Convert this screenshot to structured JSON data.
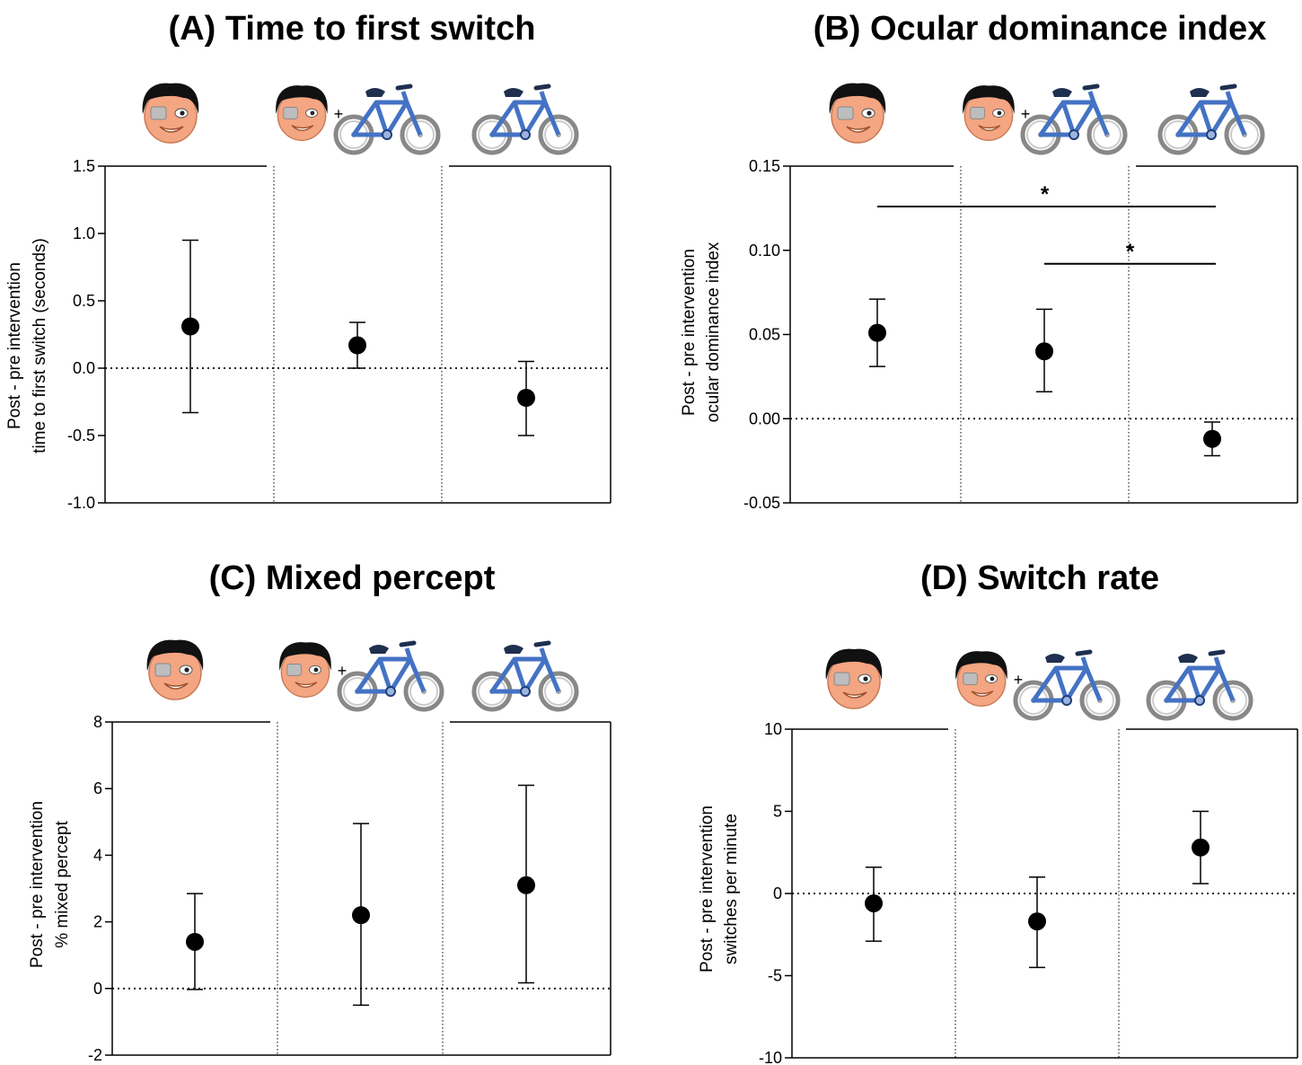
{
  "figure": {
    "panels": [
      {
        "id": "A",
        "title": "(A) Time to first switch",
        "ylabel": [
          "Post - pre intervention",
          "time to first switch (seconds)"
        ]
      },
      {
        "id": "B",
        "title": "(B) Ocular dominance index",
        "ylabel": [
          "Post - pre intervention",
          "ocular dominance index"
        ]
      },
      {
        "id": "C",
        "title": "(C) Mixed percept",
        "ylabel": [
          "Post - pre intervention",
          "% mixed percept"
        ]
      },
      {
        "id": "D",
        "title": "(D) Switch rate",
        "ylabel": [
          "Post - pre intervention",
          "switches per minute"
        ]
      }
    ],
    "condition_icons": [
      "eye-patch-face-icon",
      "eye-patch-plus-bike-icon",
      "bike-icon"
    ],
    "colors": {
      "marker": "#000000",
      "bike": "#4472c4",
      "face": "#f4a582",
      "hair": "#111111",
      "patch": "#bdbdbd"
    }
  },
  "chart_data": [
    {
      "type": "scatter",
      "title": "(A) Time to first switch",
      "ylabel": "Post - pre intervention time to first switch (seconds)",
      "ylim": [
        -1.0,
        1.5
      ],
      "yticks": [
        "1.5",
        "1.0",
        "0.5",
        "0.0",
        "-0.5",
        "-1.0"
      ],
      "ytick_values": [
        1.5,
        1.0,
        0.5,
        0.0,
        -0.5,
        -1.0
      ],
      "categories": [
        "eye-patch",
        "eye-patch + bike",
        "bike"
      ],
      "means": [
        0.31,
        0.17,
        -0.22
      ],
      "ci_low": [
        -0.33,
        0.0,
        -0.5
      ],
      "ci_high": [
        0.95,
        0.34,
        0.05
      ],
      "significance": []
    },
    {
      "type": "scatter",
      "title": "(B) Ocular dominance index",
      "ylabel": "Post - pre intervention ocular dominance index",
      "ylim": [
        -0.05,
        0.15
      ],
      "yticks": [
        "0.15",
        "0.10",
        "0.05",
        "0.00",
        "-0.05"
      ],
      "ytick_values": [
        0.15,
        0.1,
        0.05,
        0.0,
        -0.05
      ],
      "categories": [
        "eye-patch",
        "eye-patch + bike",
        "bike"
      ],
      "means": [
        0.051,
        0.04,
        -0.012
      ],
      "ci_low": [
        0.031,
        0.016,
        -0.022
      ],
      "ci_high": [
        0.071,
        0.065,
        -0.002
      ],
      "significance": [
        {
          "from": 0,
          "to": 2,
          "level": 0.126,
          "label": "*"
        },
        {
          "from": 1,
          "to": 2,
          "level": 0.092,
          "label": "*"
        }
      ]
    },
    {
      "type": "scatter",
      "title": "(C) Mixed percept",
      "ylabel": "Post - pre intervention % mixed percept",
      "ylim": [
        -2,
        8
      ],
      "yticks": [
        "8",
        "6",
        "4",
        "2",
        "0",
        "-2"
      ],
      "ytick_values": [
        8,
        6,
        4,
        2,
        0,
        -2
      ],
      "categories": [
        "eye-patch",
        "eye-patch + bike",
        "bike"
      ],
      "means": [
        1.4,
        2.2,
        3.1
      ],
      "ci_low": [
        -0.03,
        -0.5,
        0.17
      ],
      "ci_high": [
        2.85,
        4.95,
        6.1
      ],
      "significance": []
    },
    {
      "type": "scatter",
      "title": "(D) Switch rate",
      "ylabel": "Post - pre intervention switches per minute",
      "ylim": [
        -10,
        10
      ],
      "yticks": [
        "10",
        "5",
        "0",
        "-5",
        "-10"
      ],
      "ytick_values": [
        10,
        5,
        0,
        -5,
        -10
      ],
      "categories": [
        "eye-patch",
        "eye-patch + bike",
        "bike"
      ],
      "means": [
        -0.6,
        -1.7,
        2.8
      ],
      "ci_low": [
        -2.9,
        -4.5,
        0.6
      ],
      "ci_high": [
        1.6,
        1.0,
        5.0
      ],
      "significance": []
    }
  ]
}
